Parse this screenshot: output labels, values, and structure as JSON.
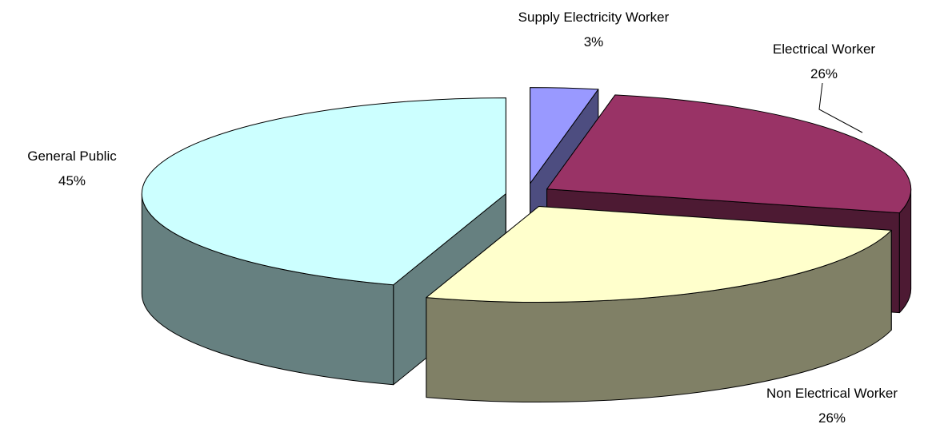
{
  "chart_data": {
    "type": "pie3d",
    "categories": [
      "Supply Electricity Worker",
      "Electrical Worker",
      "Non Electrical Worker",
      "General Public"
    ],
    "values": [
      3,
      26,
      26,
      45
    ],
    "value_labels": [
      "3%",
      "26%",
      "26%",
      "45%"
    ],
    "colors": [
      "#9999ff",
      "#993366",
      "#ffffcc",
      "#ccffff"
    ]
  }
}
